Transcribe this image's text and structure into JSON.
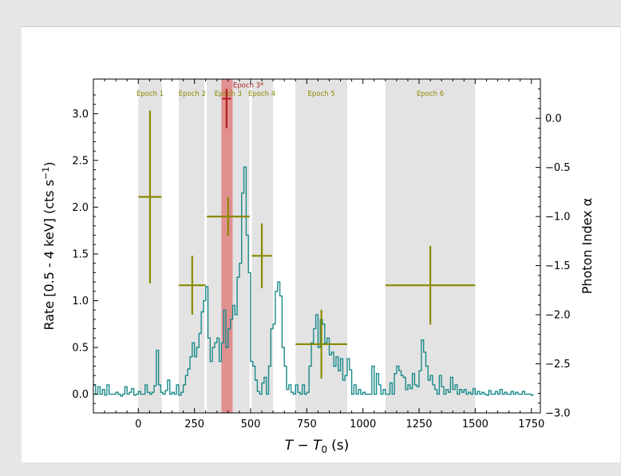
{
  "chart_data": {
    "type": "line",
    "xlabel_main": "T − T",
    "xlabel_sub": "0",
    "xlabel_unit": "(s)",
    "ylabel_left_pre": "Rate [0.5 - 4 keV] (cts s",
    "ylabel_left_sup": "−1",
    "ylabel_left_post": ")",
    "ylabel_right": "Photon Index α",
    "xlim": [
      -200,
      1790
    ],
    "ylim_left": [
      -0.2,
      3.37
    ],
    "ylim_right": [
      -3.0,
      0.4
    ],
    "xticks": [
      0,
      250,
      500,
      750,
      1000,
      1250,
      1500,
      1750
    ],
    "xtick_labels": [
      "0",
      "250",
      "500",
      "750",
      "1000",
      "1250",
      "1500",
      "1750"
    ],
    "yticks_left": [
      0.0,
      0.5,
      1.0,
      1.5,
      2.0,
      2.5,
      3.0
    ],
    "ytick_labels_left": [
      "0.0",
      "0.5",
      "1.0",
      "1.5",
      "2.0",
      "2.5",
      "3.0"
    ],
    "yticks_right": [
      0.0,
      -0.5,
      -1.0,
      -1.5,
      -2.0,
      -2.5,
      -3.0
    ],
    "ytick_labels_right": [
      "0.0",
      "−0.5",
      "−1.0",
      "−1.5",
      "−2.0",
      "−2.5",
      "−3.0"
    ],
    "epochs": [
      {
        "label": "Epoch 1",
        "x0": 0,
        "x1": 105
      },
      {
        "label": "Epoch 2",
        "x0": 180,
        "x1": 300
      },
      {
        "label": "Epoch 3",
        "x0": 300,
        "x1": 500
      },
      {
        "label": "Epoch 4",
        "x0": 500,
        "x1": 600
      },
      {
        "label": "Epoch 5",
        "x0": 700,
        "x1": 930
      },
      {
        "label": "Epoch 6",
        "x0": 1100,
        "x1": 1500
      }
    ],
    "highlight": {
      "label": "Epoch 3*",
      "x0": 370,
      "x1": 420
    },
    "light_curve": {
      "name": "Rate",
      "bin_width": 10,
      "x_start": -200,
      "values": [
        0.1,
        0.0,
        0.08,
        0.0,
        0.05,
        -0.01,
        0.1,
        0.0,
        0.0,
        0.0,
        0.02,
        0.0,
        -0.02,
        0.0,
        0.08,
        0.0,
        0.02,
        0.06,
        -0.01,
        0.0,
        0.03,
        0.0,
        0.0,
        0.1,
        0.02,
        0.0,
        0.02,
        0.09,
        0.47,
        0.1,
        0.02,
        0.0,
        0.04,
        0.15,
        0.0,
        0.02,
        0.0,
        0.1,
        -0.01,
        0.02,
        0.1,
        0.2,
        0.27,
        0.4,
        0.55,
        0.4,
        0.5,
        0.65,
        0.88,
        1.0,
        1.15,
        0.6,
        0.35,
        0.5,
        0.55,
        0.6,
        0.35,
        0.55,
        0.9,
        0.5,
        0.7,
        0.8,
        0.95,
        0.85,
        1.25,
        1.4,
        2.15,
        2.43,
        1.7,
        1.3,
        0.35,
        0.3,
        0.15,
        0.03,
        0.0,
        0.12,
        0.18,
        0.0,
        0.3,
        0.7,
        0.75,
        1.1,
        1.2,
        1.05,
        0.5,
        0.3,
        0.05,
        0.1,
        0.02,
        0.0,
        0.1,
        0.02,
        0.0,
        0.1,
        0.0,
        0.02,
        0.3,
        0.55,
        0.7,
        0.85,
        0.5,
        0.8,
        0.75,
        0.55,
        0.6,
        0.42,
        0.45,
        0.3,
        0.4,
        0.25,
        0.38,
        0.15,
        0.2,
        0.38,
        0.26,
        0.0,
        0.1,
        0.0,
        0.05,
        0.0,
        0.02,
        0.0,
        0.0,
        0.0,
        0.3,
        0.0,
        0.22,
        0.1,
        0.0,
        0.05,
        0.0,
        0.0,
        0.12,
        0.0,
        0.22,
        0.3,
        0.25,
        0.2,
        0.18,
        0.05,
        0.1,
        0.06,
        0.22,
        0.1,
        0.08,
        0.25,
        0.58,
        0.45,
        0.3,
        0.15,
        0.2,
        0.1,
        0.05,
        0.0,
        0.2,
        0.08,
        0.0,
        0.05,
        0.02,
        0.18,
        0.05,
        0.1,
        0.0,
        0.05,
        0.02,
        0.05,
        0.0,
        0.02,
        0.0,
        0.06,
        0.0,
        0.03,
        0.0,
        0.02,
        0.0,
        -0.01,
        0.04,
        0.0,
        0.0,
        0.03,
        0.0,
        0.05,
        0.0,
        0.02,
        0.0,
        0.0,
        0.03,
        0.0,
        0.02,
        0.0,
        0.0,
        0.03,
        0.0,
        0.0,
        0.0,
        -0.01
      ]
    },
    "photon_index": [
      {
        "label": "Epoch 1",
        "x": 52,
        "xerr": 52,
        "y": -0.8,
        "yerr_lo": 0.88,
        "yerr_hi": 0.88
      },
      {
        "label": "Epoch 2",
        "x": 240,
        "xerr": 60,
        "y": -1.7,
        "yerr_lo": 0.3,
        "yerr_hi": 0.3
      },
      {
        "label": "Epoch 3",
        "x": 400,
        "xerr": 95,
        "y": -1.0,
        "yerr_lo": 0.2,
        "yerr_hi": 0.2
      },
      {
        "label": "Epoch 4",
        "x": 550,
        "xerr": 45,
        "y": -1.4,
        "yerr_lo": 0.33,
        "yerr_hi": 0.33
      },
      {
        "label": "Epoch 5",
        "x": 815,
        "xerr": 115,
        "y": -2.3,
        "yerr_lo": 0.35,
        "yerr_hi": 0.35
      },
      {
        "label": "Epoch 6",
        "x": 1300,
        "xerr": 200,
        "y": -1.7,
        "yerr_lo": 0.4,
        "yerr_hi": 0.4
      }
    ],
    "photon_index_star": {
      "label": "Epoch 3*",
      "x": 393,
      "xerr": 20,
      "y": 0.2,
      "yerr_lo": 0.3,
      "yerr_hi": 0.1
    },
    "colors": {
      "light_curve": "#1a8a8a",
      "photon_index": "#8a8a00",
      "highlight": "#e08080",
      "star_point": "#b22222",
      "epoch_band": "#e3e3e3",
      "epoch_label": "#8a8a00",
      "star_label": "#b22222"
    }
  }
}
